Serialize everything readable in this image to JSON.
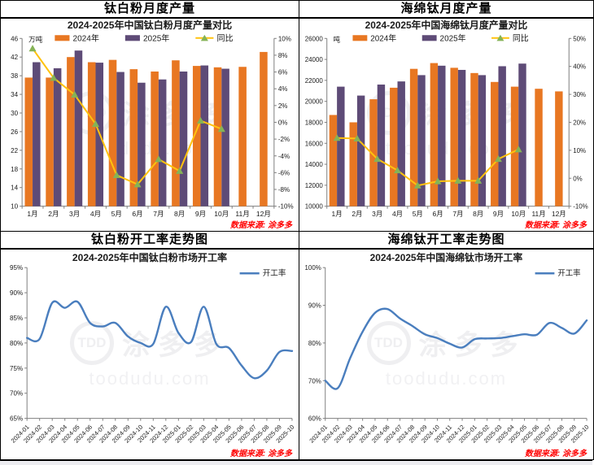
{
  "source_note": "数据来源: 涂多多",
  "watermark": {
    "logo": "TDD",
    "brand": "涂多多",
    "site": "toodudu.com"
  },
  "colors": {
    "bar_2024": "#E87722",
    "bar_2025": "#5E4B77",
    "yoy_line": "#FFC20E",
    "yoy_marker": "#85B356",
    "rate_line": "#4A7EBE",
    "axis": "#7f7f7f",
    "text": "#1a1a1a",
    "source_text": "#FF0000"
  },
  "panels": [
    {
      "title": "钛白粉月度产量"
    },
    {
      "title": "海绵钛月度产量"
    },
    {
      "title": "钛白粉开工率走势图"
    },
    {
      "title": "海绵钛开工率走势图"
    }
  ],
  "chart_data": [
    {
      "type": "bar",
      "title": "钛白粉月度产量",
      "subtitle": "2024-2025年中国钛白粉月度产量对比",
      "unit": "万吨",
      "legend": [
        "2024年",
        "2025年",
        "同比"
      ],
      "categories": [
        "1月",
        "2月",
        "3月",
        "4月",
        "5月",
        "6月",
        "7月",
        "8月",
        "9月",
        "10月",
        "11月",
        "12月"
      ],
      "series": [
        {
          "name": "2024年",
          "type": "bar",
          "values": [
            37.6,
            37.6,
            42.0,
            40.9,
            41.4,
            39.4,
            38.9,
            41.3,
            40.1,
            39.8,
            39.9,
            43.1
          ]
        },
        {
          "name": "2025年",
          "type": "bar",
          "values": [
            40.9,
            39.6,
            43.4,
            40.8,
            38.8,
            36.5,
            37.2,
            38.9,
            40.2,
            39.5,
            null,
            null
          ]
        },
        {
          "name": "同比",
          "type": "line",
          "axis": "right",
          "values": [
            8.8,
            5.3,
            3.3,
            -0.2,
            -6.3,
            -7.4,
            -4.4,
            -5.8,
            0.2,
            -0.8,
            null,
            null
          ]
        }
      ],
      "left_axis": {
        "min": 10,
        "max": 46,
        "tick_labels": [
          "46",
          "42",
          "38",
          "34",
          "30",
          "26",
          "22",
          "18",
          "14",
          "10"
        ]
      },
      "right_axis": {
        "min": -10,
        "max": 10,
        "tick_labels": [
          "10%",
          "8%",
          "6%",
          "4%",
          "2%",
          "0%",
          "-2%",
          "-4%",
          "-6%",
          "-8%",
          "-10%"
        ]
      },
      "grid": false,
      "legend_position": "top-center"
    },
    {
      "type": "bar",
      "title": "海绵钛月度产量",
      "subtitle": "2024-2025年中国海绵钛月度产量对比",
      "unit": "吨",
      "legend": [
        "2024年",
        "2025年",
        "同比"
      ],
      "categories": [
        "1月",
        "2月",
        "3月",
        "4月",
        "5月",
        "6月",
        "7月",
        "8月",
        "9月",
        "10月",
        "11月",
        "12月"
      ],
      "series": [
        {
          "name": "2024年",
          "type": "bar",
          "values": [
            18700,
            18000,
            20200,
            21300,
            23100,
            23650,
            23200,
            22700,
            21850,
            21400,
            21200,
            20950
          ]
        },
        {
          "name": "2025年",
          "type": "bar",
          "values": [
            21400,
            20550,
            21600,
            21900,
            22500,
            23400,
            23000,
            22500,
            23350,
            23600,
            null,
            null
          ]
        },
        {
          "name": "同比",
          "type": "line",
          "axis": "right",
          "values": [
            14.4,
            14.2,
            6.9,
            2.8,
            -2.6,
            -1.1,
            -0.9,
            -0.9,
            6.9,
            10.3,
            null,
            null
          ]
        }
      ],
      "left_axis": {
        "min": 10000,
        "max": 26000,
        "tick_labels": [
          "26000",
          "24000",
          "22000",
          "20000",
          "18000",
          "16000",
          "14000",
          "12000",
          "10000"
        ]
      },
      "right_axis": {
        "min": -10,
        "max": 50,
        "tick_labels": [
          "50%",
          "40%",
          "30%",
          "20%",
          "10%",
          "0%",
          "-10%"
        ]
      },
      "grid": false,
      "legend_position": "top-center"
    },
    {
      "type": "line",
      "title": "钛白粉开工率走势图",
      "subtitle": "2024-2025年中国钛白粉市场开工率",
      "legend": [
        "开工率"
      ],
      "x": [
        "2024-01",
        "2024-02",
        "2024-03",
        "2024-04",
        "2024-05",
        "2024-06",
        "2024-07",
        "2024-08",
        "2024-09",
        "2024-10",
        "2024-11",
        "2024-12",
        "2025-01",
        "2025-02",
        "2025-03",
        "2025-04",
        "2025-05",
        "2025-06",
        "2025-07",
        "2025-08",
        "2025-09",
        "2025-10"
      ],
      "values": [
        81,
        80.8,
        88,
        87,
        88.2,
        84,
        83.3,
        84,
        81.3,
        80,
        79.8,
        87.2,
        82,
        80.2,
        87.2,
        79.8,
        79,
        75.5,
        73,
        74.5,
        78.2,
        78.4
      ],
      "y_axis": {
        "min": 65,
        "max": 95,
        "tick_labels": [
          "95%",
          "90%",
          "85%",
          "80%",
          "75%",
          "70%",
          "65%"
        ]
      },
      "grid": false,
      "legend_position": "top-right"
    },
    {
      "type": "line",
      "title": "海绵钛开工率走势图",
      "subtitle": "2024-2025年中国海绵钛市场开工率",
      "legend": [
        "开工率"
      ],
      "x": [
        "2024-01",
        "2024-02",
        "2024-03",
        "2024-04",
        "2024-05",
        "2024-06",
        "2024-07",
        "2024-08",
        "2024-09",
        "2024-10",
        "2024-11",
        "2024-12",
        "2025-01",
        "2025-02",
        "2025-03",
        "2025-04",
        "2025-05",
        "2025-06",
        "2025-07",
        "2025-08",
        "2025-09",
        "2025-10"
      ],
      "values": [
        70,
        68,
        76,
        83,
        88,
        89,
        86.5,
        84.5,
        82.3,
        81.3,
        79.8,
        78.8,
        81,
        81.2,
        81.3,
        81.8,
        82.3,
        82.2,
        85.3,
        84,
        82.5,
        86
      ],
      "y_axis": {
        "min": 60,
        "max": 100,
        "tick_labels": [
          "100%",
          "90%",
          "80%",
          "70%",
          "60%"
        ]
      },
      "grid": false,
      "legend_position": "top-right"
    }
  ]
}
